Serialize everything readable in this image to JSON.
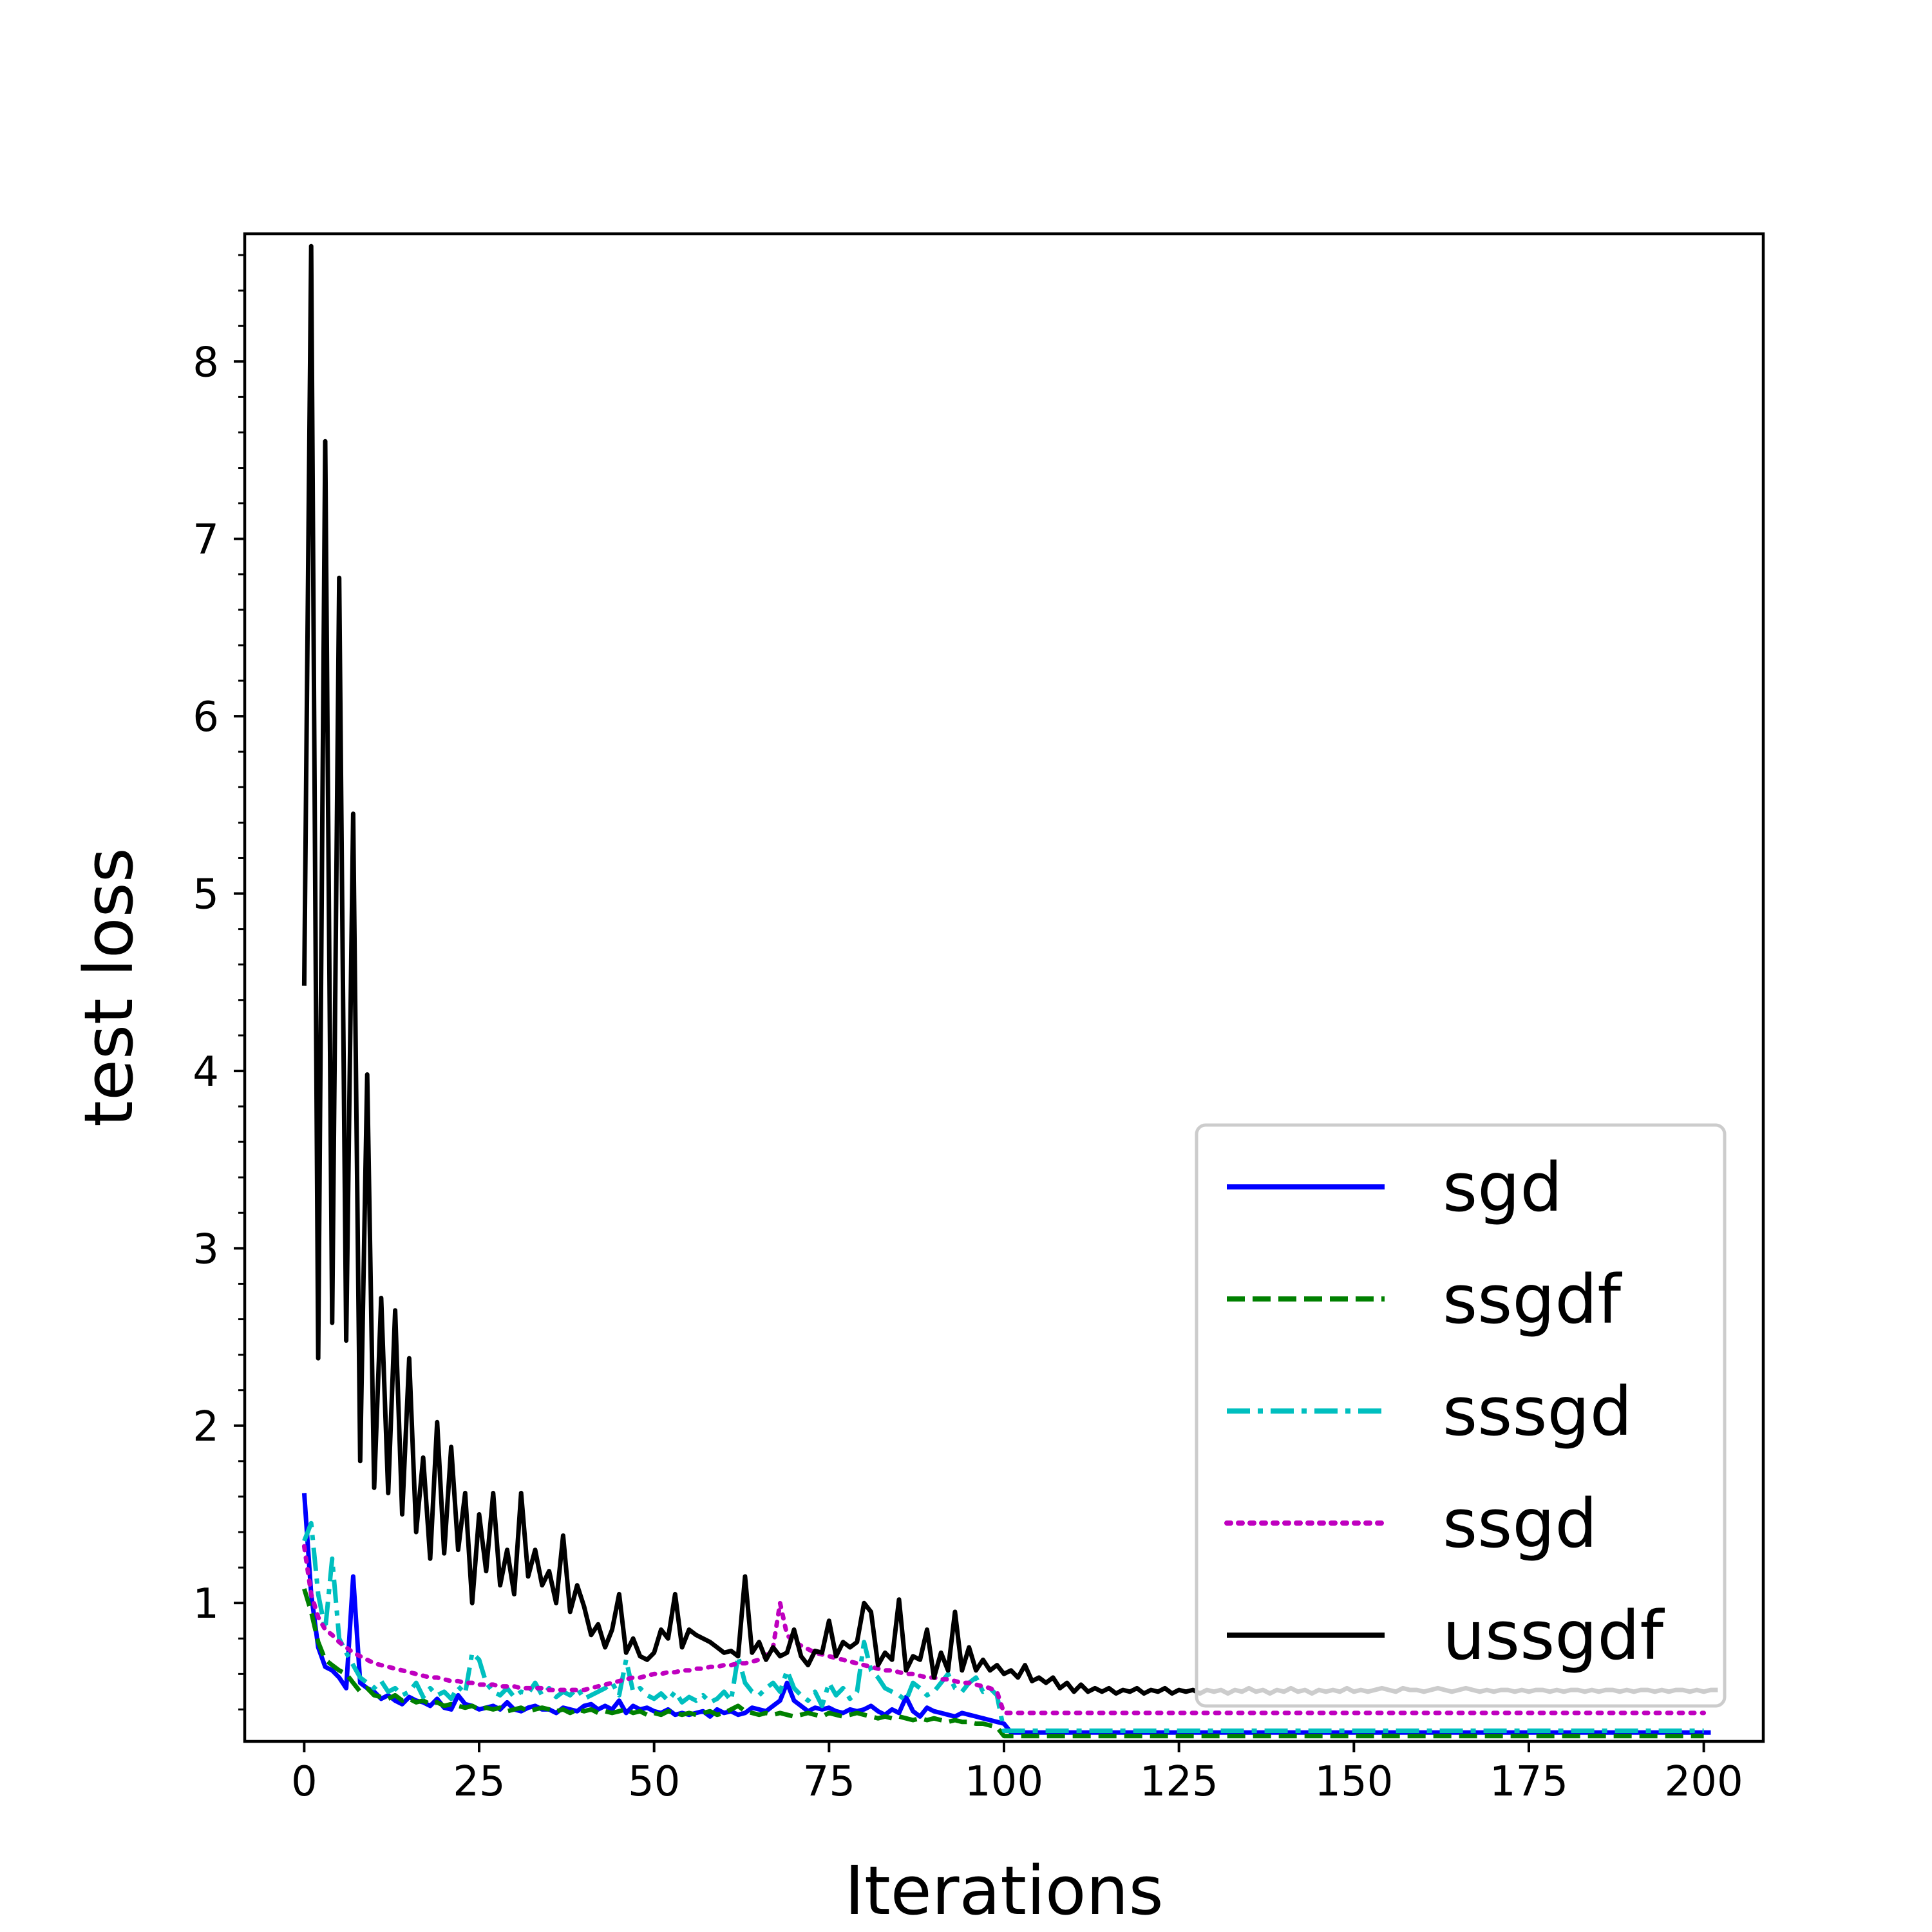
{
  "chart_data": {
    "type": "line",
    "title": "",
    "xlabel": "Iterations",
    "ylabel": "test loss",
    "xlim": [
      -8.5,
      208.5
    ],
    "ylim": [
      0.22,
      8.72
    ],
    "xticks": [
      0,
      25,
      50,
      75,
      100,
      125,
      150,
      175,
      200
    ],
    "yticks": [
      1,
      2,
      3,
      4,
      5,
      6,
      7,
      8
    ],
    "grid": false,
    "legend": "lower-right",
    "series": [
      {
        "name": "sgd",
        "color": "#0000ff",
        "dash": "solid",
        "x_start": 0,
        "x_step": 1,
        "values": [
          1.62,
          1.05,
          0.75,
          0.64,
          0.62,
          0.58,
          0.52,
          1.15,
          0.55,
          0.52,
          0.5,
          0.46,
          0.48,
          0.45,
          0.43,
          0.47,
          0.45,
          0.44,
          0.42,
          0.46,
          0.41,
          0.4,
          0.48,
          0.43,
          0.42,
          0.4,
          0.41,
          0.42,
          0.4,
          0.44,
          0.4,
          0.39,
          0.41,
          0.42,
          0.4,
          0.4,
          0.38,
          0.41,
          0.4,
          0.39,
          0.42,
          0.43,
          0.4,
          0.42,
          0.4,
          0.45,
          0.38,
          0.42,
          0.4,
          0.41,
          0.39,
          0.38,
          0.4,
          0.37,
          0.38,
          0.37,
          0.38,
          0.39,
          0.36,
          0.4,
          0.38,
          0.39,
          0.37,
          0.38,
          0.41,
          0.4,
          0.39,
          0.42,
          0.45,
          0.55,
          0.45,
          0.42,
          0.39,
          0.41,
          0.4,
          0.41,
          0.39,
          0.38,
          0.4,
          0.39,
          0.4,
          0.42,
          0.39,
          0.37,
          0.4,
          0.38,
          0.47,
          0.39,
          0.36,
          0.41,
          0.39,
          0.38,
          0.37,
          0.36,
          0.38,
          0.37,
          0.36,
          0.35,
          0.34,
          0.33,
          0.32,
          0.27,
          0.27,
          0.27,
          0.27,
          0.27,
          0.27,
          0.27,
          0.27,
          0.27,
          0.27,
          0.27,
          0.27,
          0.27,
          0.27,
          0.27,
          0.27,
          0.27,
          0.27,
          0.27,
          0.27,
          0.27,
          0.27,
          0.27,
          0.27,
          0.27,
          0.27,
          0.27,
          0.27,
          0.27,
          0.27,
          0.27,
          0.27,
          0.27,
          0.27,
          0.27,
          0.27,
          0.27,
          0.27,
          0.27,
          0.27,
          0.27,
          0.27,
          0.27,
          0.27,
          0.27,
          0.27,
          0.27,
          0.27,
          0.27,
          0.27,
          0.27,
          0.27,
          0.27,
          0.27,
          0.27,
          0.27,
          0.27,
          0.27,
          0.27,
          0.27,
          0.27,
          0.27,
          0.27,
          0.27,
          0.27,
          0.27,
          0.27,
          0.27,
          0.27,
          0.27,
          0.27,
          0.27,
          0.27,
          0.27,
          0.27,
          0.27,
          0.27,
          0.27,
          0.27,
          0.27,
          0.27,
          0.27,
          0.27,
          0.27,
          0.27,
          0.27,
          0.27,
          0.27,
          0.27,
          0.27,
          0.27,
          0.27,
          0.27,
          0.27,
          0.27,
          0.27,
          0.27,
          0.27,
          0.27,
          0.27,
          0.27
        ]
      },
      {
        "name": "ssgdf",
        "color": "#008000",
        "dash": "dashed",
        "x_start": 0,
        "x_step": 1,
        "values": [
          1.08,
          0.95,
          0.78,
          0.68,
          0.65,
          0.62,
          0.6,
          0.55,
          0.5,
          0.52,
          0.48,
          0.47,
          0.46,
          0.48,
          0.45,
          0.46,
          0.44,
          0.45,
          0.43,
          0.44,
          0.42,
          0.43,
          0.42,
          0.41,
          0.42,
          0.4,
          0.41,
          0.4,
          0.41,
          0.39,
          0.4,
          0.41,
          0.39,
          0.4,
          0.41,
          0.4,
          0.39,
          0.4,
          0.38,
          0.4,
          0.39,
          0.4,
          0.38,
          0.39,
          0.38,
          0.39,
          0.4,
          0.38,
          0.39,
          0.37,
          0.38,
          0.37,
          0.39,
          0.38,
          0.37,
          0.38,
          0.37,
          0.38,
          0.39,
          0.37,
          0.38,
          0.4,
          0.42,
          0.39,
          0.38,
          0.37,
          0.38,
          0.37,
          0.38,
          0.37,
          0.36,
          0.37,
          0.38,
          0.37,
          0.36,
          0.38,
          0.37,
          0.36,
          0.37,
          0.38,
          0.37,
          0.36,
          0.35,
          0.36,
          0.35,
          0.36,
          0.35,
          0.34,
          0.35,
          0.34,
          0.35,
          0.34,
          0.33,
          0.34,
          0.33,
          0.33,
          0.32,
          0.32,
          0.31,
          0.3,
          0.25,
          0.25,
          0.25,
          0.25,
          0.25,
          0.25,
          0.25,
          0.25,
          0.25,
          0.25,
          0.25,
          0.25,
          0.25,
          0.25,
          0.25,
          0.25,
          0.25,
          0.25,
          0.25,
          0.25,
          0.25,
          0.25,
          0.25,
          0.25,
          0.25,
          0.25,
          0.25,
          0.25,
          0.25,
          0.25,
          0.25,
          0.25,
          0.25,
          0.25,
          0.25,
          0.25,
          0.25,
          0.25,
          0.25,
          0.25,
          0.25,
          0.25,
          0.25,
          0.25,
          0.25,
          0.25,
          0.25,
          0.25,
          0.25,
          0.25,
          0.25,
          0.25,
          0.25,
          0.25,
          0.25,
          0.25,
          0.25,
          0.25,
          0.25,
          0.25,
          0.25,
          0.25,
          0.25,
          0.25,
          0.25,
          0.25,
          0.25,
          0.25,
          0.25,
          0.25,
          0.25,
          0.25,
          0.25,
          0.25,
          0.25,
          0.25,
          0.25,
          0.25,
          0.25,
          0.25,
          0.25,
          0.25,
          0.25,
          0.25,
          0.25,
          0.25,
          0.25,
          0.25,
          0.25,
          0.25,
          0.25,
          0.25,
          0.25,
          0.25,
          0.25,
          0.25,
          0.25,
          0.25,
          0.25,
          0.25,
          0.25
        ]
      },
      {
        "name": "sssgd",
        "color": "#00bfbf",
        "dash": "dashdot",
        "x_start": 0,
        "x_step": 1,
        "values": [
          1.35,
          1.45,
          1.05,
          0.85,
          1.25,
          0.8,
          0.72,
          0.65,
          0.58,
          0.55,
          0.52,
          0.56,
          0.5,
          0.52,
          0.48,
          0.5,
          0.55,
          0.47,
          0.52,
          0.48,
          0.5,
          0.46,
          0.53,
          0.49,
          0.72,
          0.68,
          0.55,
          0.5,
          0.48,
          0.52,
          0.47,
          0.5,
          0.49,
          0.55,
          0.48,
          0.52,
          0.47,
          0.5,
          0.48,
          0.52,
          0.46,
          0.48,
          0.5,
          0.52,
          0.55,
          0.48,
          0.68,
          0.5,
          0.52,
          0.48,
          0.46,
          0.49,
          0.45,
          0.5,
          0.44,
          0.47,
          0.45,
          0.48,
          0.44,
          0.46,
          0.5,
          0.45,
          0.7,
          0.55,
          0.5,
          0.48,
          0.52,
          0.55,
          0.5,
          0.62,
          0.52,
          0.48,
          0.45,
          0.5,
          0.42,
          0.55,
          0.48,
          0.52,
          0.46,
          0.5,
          0.78,
          0.62,
          0.58,
          0.52,
          0.5,
          0.48,
          0.45,
          0.55,
          0.52,
          0.48,
          0.5,
          0.55,
          0.6,
          0.52,
          0.5,
          0.55,
          0.58,
          0.5,
          0.52,
          0.48,
          0.28,
          0.28,
          0.28,
          0.28,
          0.28,
          0.28,
          0.28,
          0.28,
          0.28,
          0.28,
          0.28,
          0.28,
          0.28,
          0.28,
          0.28,
          0.28,
          0.28,
          0.28,
          0.28,
          0.28,
          0.28,
          0.28,
          0.28,
          0.28,
          0.28,
          0.28,
          0.28,
          0.28,
          0.28,
          0.28,
          0.28,
          0.28,
          0.28,
          0.28,
          0.28,
          0.28,
          0.28,
          0.28,
          0.28,
          0.28,
          0.28,
          0.28,
          0.28,
          0.28,
          0.28,
          0.28,
          0.28,
          0.28,
          0.28,
          0.28,
          0.28,
          0.28,
          0.28,
          0.28,
          0.28,
          0.28,
          0.28,
          0.28,
          0.28,
          0.28,
          0.28,
          0.28,
          0.28,
          0.28,
          0.28,
          0.28,
          0.28,
          0.28,
          0.28,
          0.28,
          0.28,
          0.28,
          0.28,
          0.28,
          0.28,
          0.28,
          0.28,
          0.28,
          0.28,
          0.28,
          0.28,
          0.28,
          0.28,
          0.28,
          0.28,
          0.28,
          0.28,
          0.28,
          0.28,
          0.28,
          0.28,
          0.28,
          0.28,
          0.28,
          0.28,
          0.28,
          0.28,
          0.28,
          0.28,
          0.28,
          0.28
        ]
      },
      {
        "name": "ssgd",
        "color": "#bf00bf",
        "dash": "dotted",
        "x_start": 0,
        "x_step": 1,
        "values": [
          1.32,
          1.05,
          0.92,
          0.85,
          0.82,
          0.78,
          0.75,
          0.72,
          0.7,
          0.68,
          0.66,
          0.65,
          0.64,
          0.63,
          0.62,
          0.61,
          0.6,
          0.59,
          0.58,
          0.58,
          0.57,
          0.56,
          0.56,
          0.55,
          0.55,
          0.54,
          0.54,
          0.54,
          0.53,
          0.53,
          0.53,
          0.52,
          0.52,
          0.52,
          0.52,
          0.51,
          0.51,
          0.51,
          0.51,
          0.51,
          0.51,
          0.52,
          0.53,
          0.54,
          0.55,
          0.56,
          0.57,
          0.58,
          0.58,
          0.59,
          0.6,
          0.6,
          0.61,
          0.61,
          0.62,
          0.62,
          0.63,
          0.63,
          0.64,
          0.64,
          0.65,
          0.65,
          0.66,
          0.66,
          0.67,
          0.68,
          0.7,
          0.75,
          1.0,
          0.82,
          0.78,
          0.76,
          0.74,
          0.72,
          0.71,
          0.7,
          0.69,
          0.68,
          0.67,
          0.66,
          0.65,
          0.64,
          0.63,
          0.62,
          0.62,
          0.61,
          0.6,
          0.6,
          0.59,
          0.58,
          0.58,
          0.57,
          0.57,
          0.56,
          0.55,
          0.55,
          0.54,
          0.53,
          0.52,
          0.5,
          0.38,
          0.38,
          0.38,
          0.38,
          0.38,
          0.38,
          0.38,
          0.38,
          0.38,
          0.38,
          0.38,
          0.38,
          0.38,
          0.38,
          0.38,
          0.38,
          0.38,
          0.38,
          0.38,
          0.38,
          0.38,
          0.38,
          0.38,
          0.38,
          0.38,
          0.38,
          0.38,
          0.38,
          0.38,
          0.38,
          0.38,
          0.38,
          0.38,
          0.38,
          0.38,
          0.38,
          0.38,
          0.38,
          0.38,
          0.38,
          0.38,
          0.38,
          0.38,
          0.38,
          0.38,
          0.38,
          0.38,
          0.38,
          0.38,
          0.38,
          0.38,
          0.38,
          0.38,
          0.38,
          0.38,
          0.38,
          0.38,
          0.38,
          0.38,
          0.38,
          0.38,
          0.38,
          0.38,
          0.38,
          0.38,
          0.38,
          0.38,
          0.38,
          0.38,
          0.38,
          0.38,
          0.38,
          0.38,
          0.38,
          0.38,
          0.38,
          0.38,
          0.38,
          0.38,
          0.38,
          0.38,
          0.38,
          0.38,
          0.38,
          0.38,
          0.38,
          0.38,
          0.38,
          0.38,
          0.38,
          0.38,
          0.38,
          0.38,
          0.38,
          0.38,
          0.38,
          0.38,
          0.38,
          0.38,
          0.38,
          0.38
        ]
      },
      {
        "name": "ussgdf",
        "color": "#000000",
        "dash": "solid",
        "x_start": 0,
        "x_step": 1,
        "values": [
          4.48,
          8.65,
          2.38,
          7.55,
          2.58,
          6.78,
          2.48,
          5.45,
          1.8,
          3.98,
          1.65,
          2.72,
          1.62,
          2.65,
          1.5,
          2.38,
          1.4,
          1.82,
          1.25,
          2.02,
          1.28,
          1.88,
          1.3,
          1.62,
          1.0,
          1.5,
          1.18,
          1.62,
          1.1,
          1.3,
          1.05,
          1.62,
          1.15,
          1.3,
          1.1,
          1.18,
          1.0,
          1.38,
          0.95,
          1.1,
          0.98,
          0.82,
          0.88,
          0.75,
          0.85,
          1.05,
          0.72,
          0.8,
          0.7,
          0.68,
          0.72,
          0.85,
          0.8,
          1.05,
          0.75,
          0.85,
          0.82,
          0.8,
          0.78,
          0.75,
          0.72,
          0.73,
          0.7,
          1.15,
          0.72,
          0.78,
          0.68,
          0.75,
          0.7,
          0.72,
          0.85,
          0.7,
          0.65,
          0.73,
          0.72,
          0.9,
          0.7,
          0.78,
          0.75,
          0.78,
          1.0,
          0.95,
          0.65,
          0.72,
          0.68,
          1.02,
          0.62,
          0.7,
          0.68,
          0.85,
          0.58,
          0.72,
          0.62,
          0.95,
          0.62,
          0.75,
          0.62,
          0.68,
          0.62,
          0.65,
          0.6,
          0.62,
          0.58,
          0.65,
          0.56,
          0.58,
          0.55,
          0.58,
          0.52,
          0.55,
          0.5,
          0.54,
          0.5,
          0.52,
          0.5,
          0.52,
          0.49,
          0.51,
          0.5,
          0.52,
          0.49,
          0.51,
          0.5,
          0.52,
          0.49,
          0.51,
          0.5,
          0.51,
          0.49,
          0.51,
          0.5,
          0.51,
          0.49,
          0.51,
          0.5,
          0.52,
          0.5,
          0.51,
          0.49,
          0.51,
          0.5,
          0.52,
          0.5,
          0.51,
          0.49,
          0.51,
          0.5,
          0.51,
          0.5,
          0.52,
          0.5,
          0.51,
          0.5,
          0.51,
          0.52,
          0.51,
          0.5,
          0.52,
          0.51,
          0.51,
          0.5,
          0.51,
          0.52,
          0.51,
          0.5,
          0.51,
          0.52,
          0.51,
          0.5,
          0.51,
          0.5,
          0.51,
          0.51,
          0.5,
          0.51,
          0.5,
          0.51,
          0.51,
          0.5,
          0.51,
          0.5,
          0.51,
          0.51,
          0.5,
          0.51,
          0.5,
          0.51,
          0.51,
          0.5,
          0.51,
          0.5,
          0.51,
          0.51,
          0.5,
          0.51,
          0.5,
          0.51,
          0.51,
          0.5,
          0.51,
          0.5,
          0.51,
          0.51
        ]
      }
    ]
  }
}
